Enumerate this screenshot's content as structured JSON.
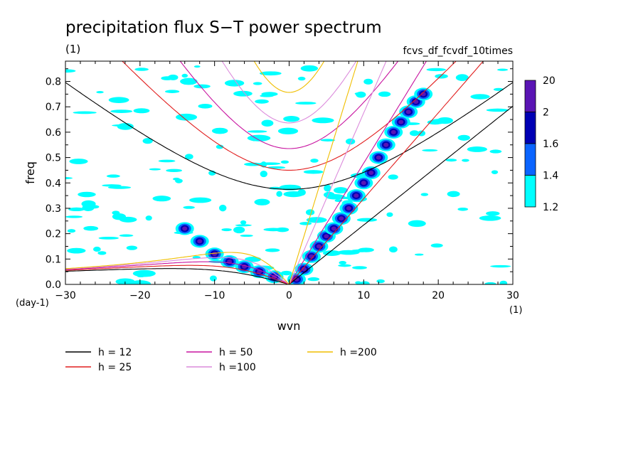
{
  "chart_data": {
    "type": "heatmap",
    "title": "precipitation flux S−T power spectrum",
    "subtitle_left": "(1)",
    "subtitle_right": "fcvs_df_fcvdf_10times",
    "xlabel": "wvn",
    "ylabel": "freq",
    "x_unit": "(1)",
    "y_unit": "(day-1)",
    "xlim": [
      -30,
      30
    ],
    "ylim": [
      0,
      0.88
    ],
    "x_ticks": [
      -30,
      -20,
      -10,
      0,
      10,
      20,
      30
    ],
    "x_tick_labels": [
      "−30",
      "−20",
      "−10",
      "0",
      "10",
      "20",
      "30"
    ],
    "y_ticks": [
      0,
      0.1,
      0.2,
      0.3,
      0.4,
      0.5,
      0.6,
      0.7,
      0.8
    ],
    "y_tick_labels": [
      "0.0",
      "0.1",
      "0.2",
      "0.3",
      "0.4",
      "0.5",
      "0.6",
      "0.7",
      "0.8"
    ],
    "colorbar": {
      "levels": [
        "1.2",
        "1.4",
        "1.6",
        "2",
        "20"
      ],
      "colors": [
        "#00ffff",
        "#0a64ff",
        "#0000b4",
        "#5a14b4"
      ]
    },
    "dispersion_curves": [
      {
        "label": "h = 12",
        "h": 12,
        "color": "#000000"
      },
      {
        "label": "h = 25",
        "h": 25,
        "color": "#e11e1e"
      },
      {
        "label": "h = 50",
        "h": 50,
        "color": "#c814a0"
      },
      {
        "label": "h =100",
        "h": 100,
        "color": "#dc8cdc"
      },
      {
        "label": "h =200",
        "h": 200,
        "color": "#f0be00"
      }
    ],
    "significant_regions": [
      {
        "name": "kelvin-band",
        "points": [
          [
            1,
            0.02
          ],
          [
            2,
            0.06
          ],
          [
            3,
            0.11
          ],
          [
            4,
            0.15
          ],
          [
            5,
            0.19
          ],
          [
            6,
            0.22
          ],
          [
            7,
            0.26
          ],
          [
            8,
            0.3
          ],
          [
            9,
            0.35
          ],
          [
            10,
            0.4
          ],
          [
            11,
            0.44
          ],
          [
            12,
            0.5
          ],
          [
            13,
            0.55
          ],
          [
            14,
            0.6
          ],
          [
            15,
            0.64
          ],
          [
            16,
            0.68
          ],
          [
            17,
            0.72
          ],
          [
            18,
            0.75
          ]
        ],
        "level": 4
      },
      {
        "name": "rossby-band",
        "points": [
          [
            -14,
            0.22
          ],
          [
            -12,
            0.17
          ],
          [
            -10,
            0.12
          ],
          [
            -8,
            0.09
          ],
          [
            -6,
            0.07
          ],
          [
            -4,
            0.05
          ],
          [
            -2,
            0.03
          ]
        ],
        "level": 4
      }
    ]
  }
}
